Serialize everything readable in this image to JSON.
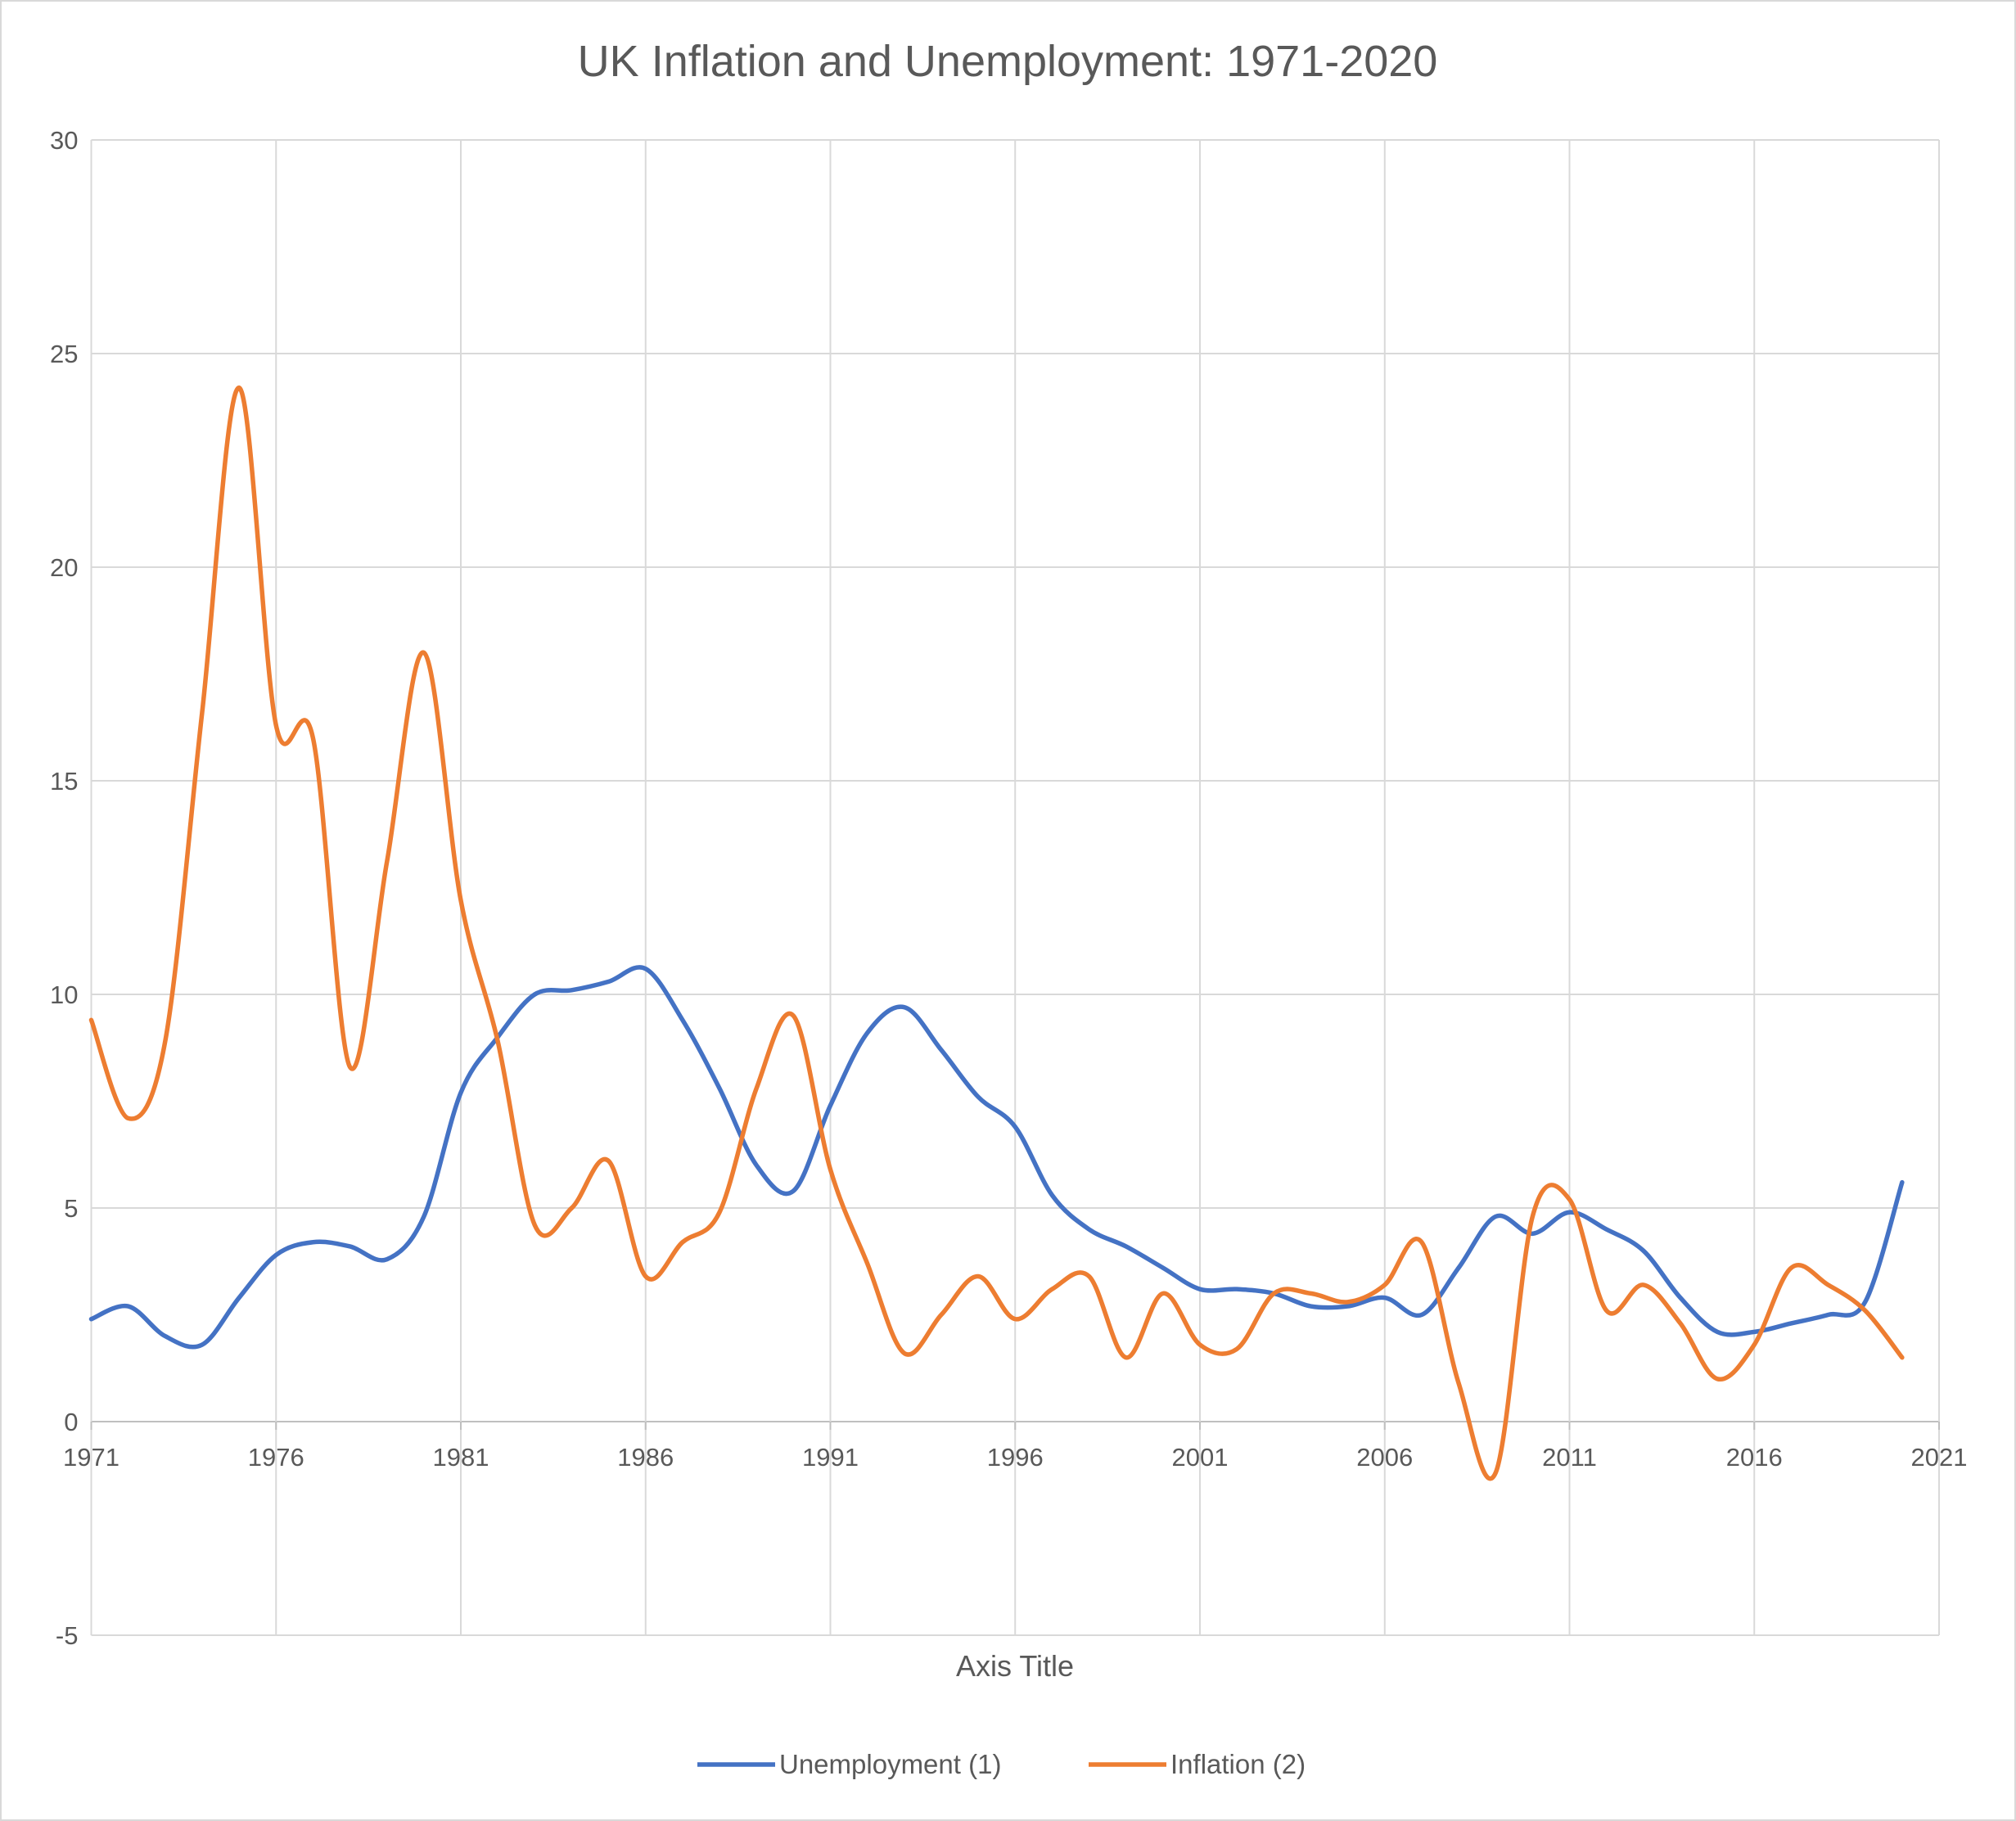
{
  "chart_data": {
    "type": "line",
    "title": "UK Inflation and Unemployment: 1971-2020",
    "xlabel": "Axis Title",
    "ylabel": "",
    "xlim": [
      1971,
      2021
    ],
    "ylim": [
      -5,
      30
    ],
    "x_ticks": [
      1971,
      1976,
      1981,
      1986,
      1991,
      1996,
      2001,
      2006,
      2011,
      2016,
      2021
    ],
    "y_ticks": [
      -5,
      0,
      5,
      10,
      15,
      20,
      25,
      30
    ],
    "grid": true,
    "smoothed": true,
    "legend_position": "bottom",
    "x": [
      1971,
      1972,
      1973,
      1974,
      1975,
      1976,
      1977,
      1978,
      1979,
      1980,
      1981,
      1982,
      1983,
      1984,
      1985,
      1986,
      1987,
      1988,
      1989,
      1990,
      1991,
      1992,
      1993,
      1994,
      1995,
      1996,
      1997,
      1998,
      1999,
      2000,
      2001,
      2002,
      2003,
      2004,
      2005,
      2006,
      2007,
      2008,
      2009,
      2010,
      2011,
      2012,
      2013,
      2014,
      2015,
      2016,
      2017,
      2018,
      2019,
      2020
    ],
    "series": [
      {
        "name": "Unemployment (1)",
        "color": "#4472C4",
        "values": [
          2.4,
          2.7,
          2.0,
          1.8,
          2.9,
          3.9,
          4.2,
          4.1,
          3.8,
          4.8,
          7.7,
          9.0,
          10.0,
          10.1,
          10.3,
          10.6,
          9.4,
          7.8,
          6.0,
          5.4,
          7.4,
          9.1,
          9.7,
          8.7,
          7.6,
          6.9,
          5.3,
          4.5,
          4.1,
          3.6,
          3.1,
          3.1,
          3.0,
          2.7,
          2.7,
          2.9,
          2.5,
          3.6,
          4.8,
          4.4,
          4.9,
          4.5,
          4.0,
          2.9,
          2.1,
          2.1,
          2.3,
          2.5,
          2.8,
          5.6
        ]
      },
      {
        "name": "Inflation (2)",
        "color": "#ED7D31",
        "values": [
          9.4,
          7.1,
          8.9,
          16.6,
          24.2,
          16.3,
          16.0,
          8.3,
          13.1,
          18.0,
          12.2,
          8.9,
          4.6,
          5.0,
          6.1,
          3.4,
          4.2,
          4.9,
          7.8,
          9.5,
          5.9,
          3.7,
          1.6,
          2.5,
          3.4,
          2.4,
          3.1,
          3.4,
          1.5,
          3.0,
          1.8,
          1.7,
          3.0,
          3.0,
          2.8,
          3.2,
          4.2,
          0.9,
          -1.2,
          4.8,
          5.2,
          2.6,
          3.2,
          2.3,
          1.0,
          1.8,
          3.6,
          3.2,
          2.6,
          1.5
        ]
      }
    ]
  }
}
